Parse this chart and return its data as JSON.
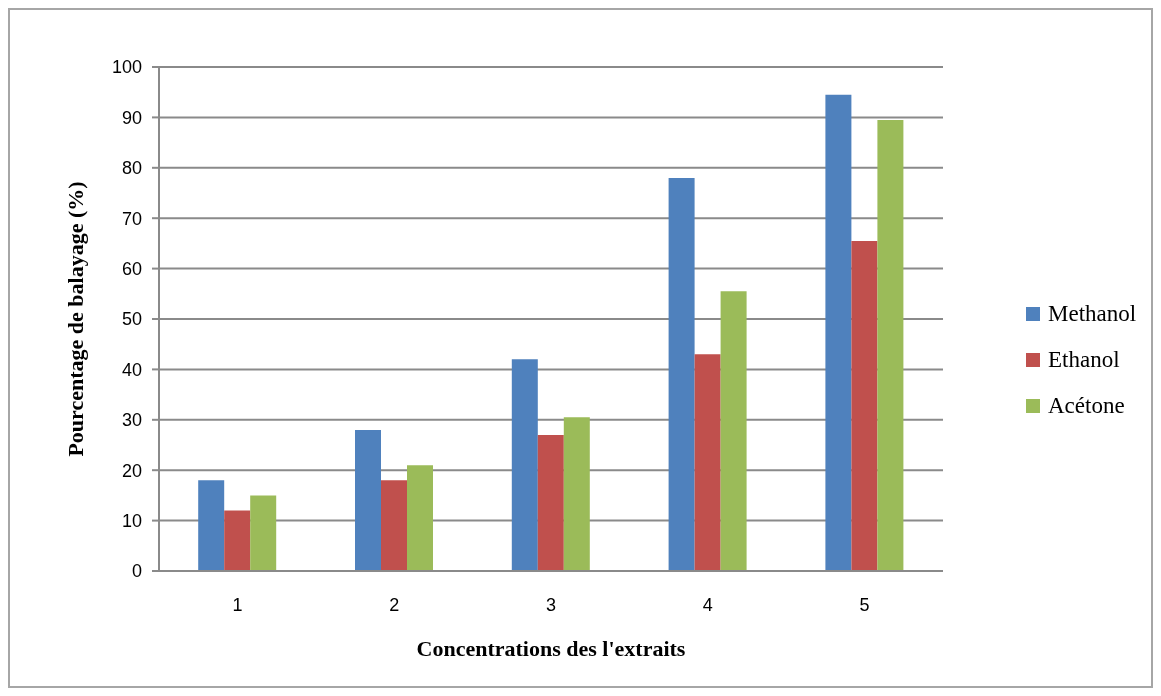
{
  "chart_data": {
    "type": "bar",
    "xlabel": "Concentrations des l'extraits",
    "ylabel": "Pourcentage de balayage (%)",
    "categories": [
      "1",
      "2",
      "3",
      "4",
      "5"
    ],
    "series": [
      {
        "name": "Methanol",
        "color": "#4f81bd",
        "values": [
          18,
          28,
          42,
          78,
          94.5
        ]
      },
      {
        "name": "Ethanol",
        "color": "#c0504d",
        "values": [
          12,
          18,
          27,
          43,
          65.5
        ]
      },
      {
        "name": "Acétone",
        "color": "#9bbb59",
        "values": [
          15,
          21,
          30.5,
          55.5,
          89.5
        ]
      }
    ],
    "ylim": [
      0,
      100
    ],
    "yticks": [
      0,
      10,
      20,
      30,
      40,
      50,
      60,
      70,
      80,
      90,
      100
    ],
    "grid": "y",
    "legend": "right"
  }
}
